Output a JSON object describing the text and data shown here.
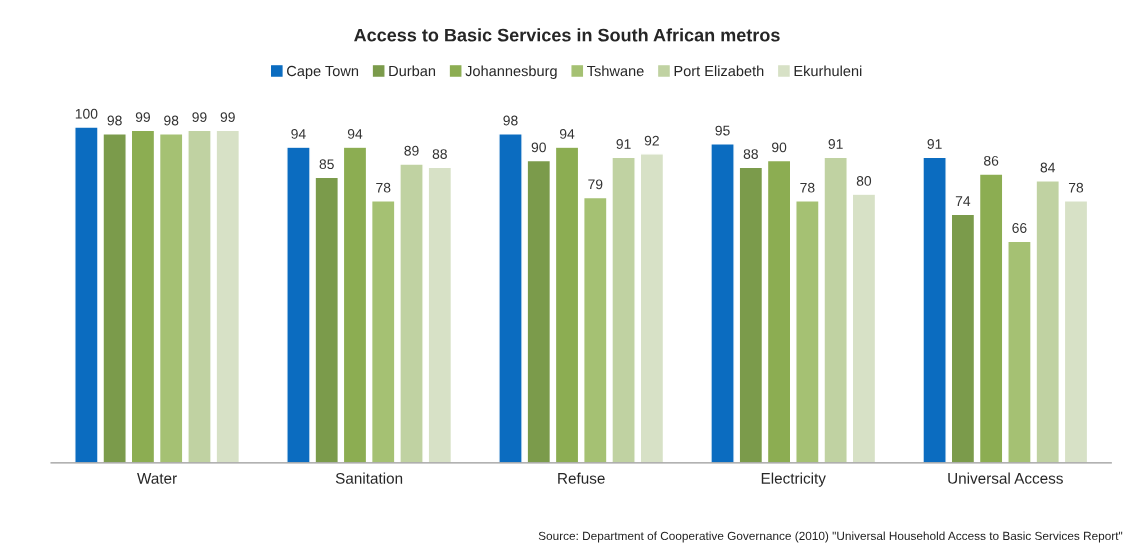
{
  "chart_data": {
    "type": "bar",
    "title": "Access to Basic Services in South African metros",
    "categories": [
      "Water",
      "Sanitation",
      "Refuse",
      "Electricity",
      "Universal Access"
    ],
    "series": [
      {
        "name": "Cape Town",
        "color": "#0b6cc0",
        "values": [
          100,
          94,
          98,
          95,
          91
        ]
      },
      {
        "name": "Durban",
        "color": "#7b9b4b",
        "values": [
          98,
          85,
          90,
          88,
          74
        ]
      },
      {
        "name": "Johannesburg",
        "color": "#8cad52",
        "values": [
          99,
          94,
          94,
          90,
          86
        ]
      },
      {
        "name": "Tshwane",
        "color": "#a5c173",
        "values": [
          98,
          78,
          79,
          78,
          66
        ]
      },
      {
        "name": "Port Elizabeth",
        "color": "#c0d2a2",
        "values": [
          99,
          89,
          91,
          91,
          84
        ]
      },
      {
        "name": "Ekurhuleni",
        "color": "#d7e1c6",
        "values": [
          99,
          88,
          92,
          80,
          78
        ]
      }
    ],
    "tick_labels": "x",
    "data_labels": true,
    "grid": false,
    "legend": "top",
    "annotations": [
      "Source: Department of Cooperative Governance (2010) \"Universal Household Access to Basic Services Report\""
    ]
  }
}
